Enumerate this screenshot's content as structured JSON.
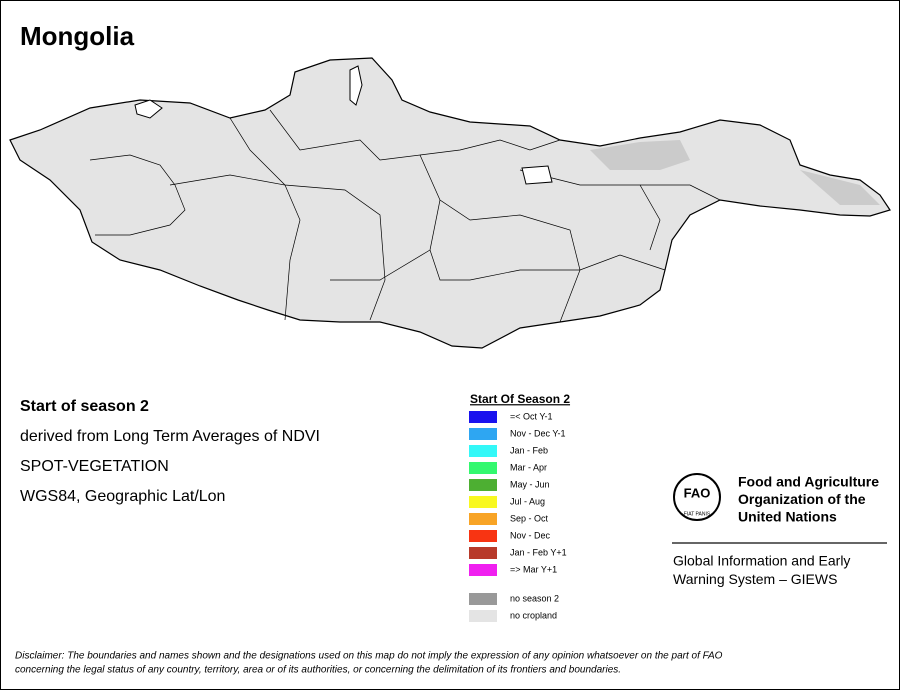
{
  "header": {
    "title": "Mongolia"
  },
  "info": [
    "Start of season 2",
    "derived from Long Term Averages of NDVI",
    "SPOT-VEGETATION",
    "WGS84, Geographic Lat/Lon"
  ],
  "legend": {
    "title": "Start Of Season 2",
    "items": [
      {
        "label": "=< Oct Y-1",
        "color": "#1a12ee"
      },
      {
        "label": "Nov - Dec Y-1",
        "color": "#2ea6f2"
      },
      {
        "label": "Jan - Feb",
        "color": "#33f8f8"
      },
      {
        "label": "Mar - Apr",
        "color": "#33f86e"
      },
      {
        "label": "May - Jun",
        "color": "#4daf32"
      },
      {
        "label": "Jul - Aug",
        "color": "#f8f820"
      },
      {
        "label": "Sep - Oct",
        "color": "#f8a426"
      },
      {
        "label": "Nov - Dec",
        "color": "#f83412"
      },
      {
        "label": "Jan - Feb Y+1",
        "color": "#b83a2a"
      },
      {
        "label": "=> Mar Y+1",
        "color": "#f020f0"
      }
    ],
    "extra": [
      {
        "label": "no season 2",
        "color": "#999999"
      },
      {
        "label": "no cropland",
        "color": "#e4e4e4"
      }
    ]
  },
  "logo": {
    "mark": "FAO",
    "motto": "FIAT PANIS",
    "org": [
      "Food and Agriculture",
      "Organization of the",
      "United Nations"
    ],
    "system": [
      "Global Information and Early",
      "Warning System – GIEWS"
    ]
  },
  "disclaimer": [
    "Disclaimer: The boundaries and names shown and the designations used on this map do not imply the expression of any opinion whatsoever on the part of FAO",
    "concerning the legal status of any country, territory, area or of its authorities, or concerning the delimitation of its frontiers and boundaries."
  ]
}
